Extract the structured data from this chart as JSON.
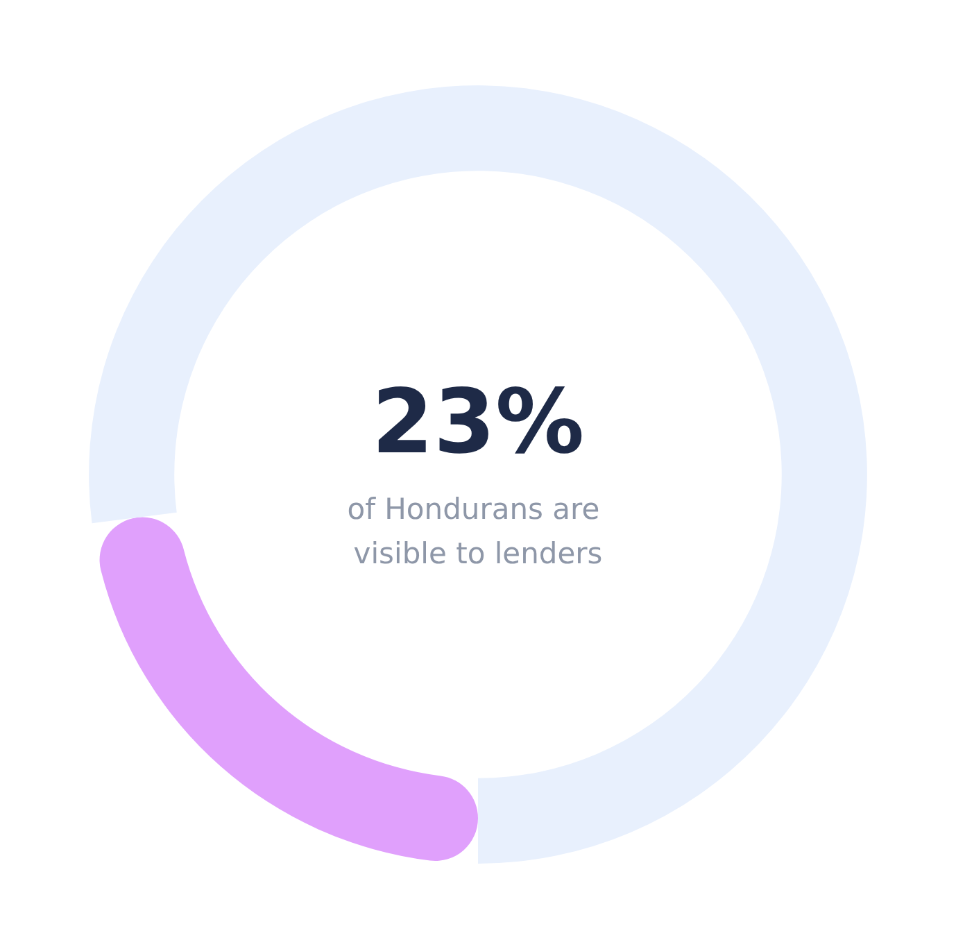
{
  "chart_data": {
    "type": "donut",
    "title": "23%",
    "subtitle": "of Hondurans are visible to lenders",
    "categories": [
      null,
      null
    ],
    "values": [
      23,
      77
    ],
    "colors": [
      "#e0a0fc",
      "#e8f0fd"
    ]
  }
}
